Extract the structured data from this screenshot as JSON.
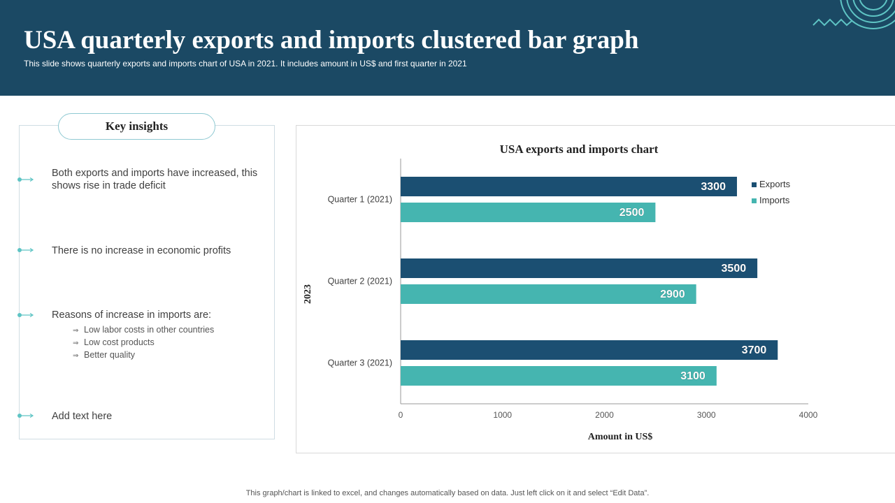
{
  "header": {
    "title": "USA quarterly exports and imports clustered bar graph",
    "subtitle": "This slide shows quarterly exports and imports chart of USA in 2021. It includes amount in US$ and first quarter in 2021"
  },
  "insights": {
    "heading": "Key insights",
    "items": [
      "Both exports and imports have increased, this shows rise in trade deficit",
      "There is no increase in economic profits",
      "Reasons of increase in imports are:",
      "Add text here"
    ],
    "sub_items": [
      "Low labor costs in other countries",
      "Low cost products",
      "Better quality"
    ]
  },
  "chart_data": {
    "type": "bar",
    "orientation": "horizontal",
    "title": "USA exports and imports chart",
    "categories": [
      "Quarter 1 (2021)",
      "Quarter 2 (2021)",
      "Quarter 3 (2021)"
    ],
    "series": [
      {
        "name": "Exports",
        "values": [
          3300,
          3500,
          3700
        ],
        "color": "#1b4f72"
      },
      {
        "name": "Imports",
        "values": [
          2500,
          2900,
          3100
        ],
        "color": "#45b5b0"
      }
    ],
    "xlabel": "Amount  in US$",
    "ylabel": "2023",
    "xlim": [
      0,
      4000
    ],
    "xticks": [
      0,
      1000,
      2000,
      3000,
      4000
    ],
    "legend_position": "right",
    "grid": false
  },
  "footer": {
    "note": "This graph/chart is linked to excel,  and changes automatically based on data. Just left click on it and select “Edit Data”."
  },
  "colors": {
    "header_bg": "#1b4964",
    "accent_teal": "#45b5b0",
    "accent_navy": "#1b4f72"
  }
}
